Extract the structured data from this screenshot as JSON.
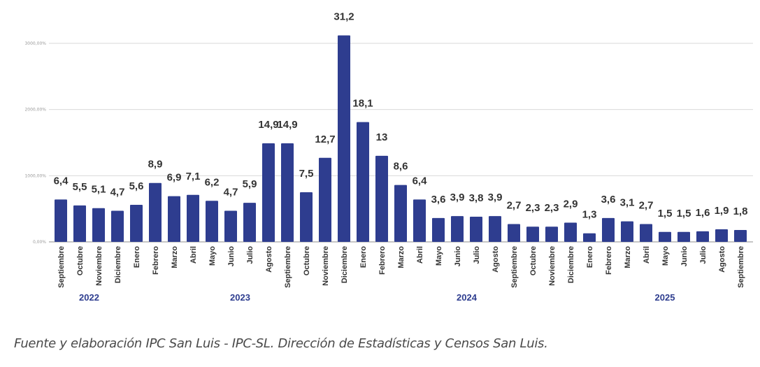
{
  "chart_data": {
    "type": "bar",
    "title": "",
    "xlabel": "",
    "ylabel": "",
    "ylim": [
      0,
      3000
    ],
    "y_ticks": [
      "0,00%",
      "1000,00%",
      "2000,00%",
      "3000,00%"
    ],
    "y_tick_values": [
      0,
      1000,
      2000,
      3000
    ],
    "grid": true,
    "legend": "none",
    "value_scale_note": "bars plotted as value x 100 on the percent axis",
    "categories": [
      "Septiembre",
      "Octubre",
      "Noviembre",
      "Diciembre",
      "Enero",
      "Febrero",
      "Marzo",
      "Abril",
      "Mayo",
      "Junio",
      "Julio",
      "Agosto",
      "Septiembre",
      "Octubre",
      "Noviembre",
      "Diciembre",
      "Enero",
      "Febrero",
      "Marzo",
      "Abril",
      "Mayo",
      "Junio",
      "Julio",
      "Agosto",
      "Septiembre",
      "Octubre",
      "Noviembre",
      "Diciembre",
      "Enero",
      "Febrero",
      "Marzo",
      "Abril",
      "Mayo",
      "Junio",
      "Julio",
      "Agosto",
      "Septiembre"
    ],
    "values": [
      6.4,
      5.5,
      5.1,
      4.7,
      5.6,
      8.9,
      6.9,
      7.1,
      6.2,
      4.7,
      5.9,
      14.9,
      14.9,
      7.5,
      12.7,
      31.2,
      18.1,
      13,
      8.6,
      6.4,
      3.6,
      3.9,
      3.8,
      3.9,
      2.7,
      2.3,
      2.3,
      2.9,
      1.3,
      3.6,
      3.1,
      2.7,
      1.5,
      1.5,
      1.6,
      1.9,
      1.8
    ],
    "data_labels": [
      "6,4",
      "5,5",
      "5,1",
      "4,7",
      "5,6",
      "8,9",
      "6,9",
      "7,1",
      "6,2",
      "4,7",
      "5,9",
      "14,9",
      "14,9",
      "7,5",
      "12,7",
      "31,2",
      "18,1",
      "13",
      "8,6",
      "6,4",
      "3,6",
      "3,9",
      "3,8",
      "3,9",
      "2,7",
      "2,3",
      "2,3",
      "2,9",
      "1,3",
      "3,6",
      "3,1",
      "2,7",
      "1,5",
      "1,5",
      "1,6",
      "1,9",
      "1,8"
    ],
    "year_groups": [
      {
        "label": "2022",
        "start": 0,
        "end": 3
      },
      {
        "label": "2023",
        "start": 4,
        "end": 15
      },
      {
        "label": "2024",
        "start": 16,
        "end": 27
      },
      {
        "label": "2025",
        "start": 28,
        "end": 36
      }
    ],
    "colors": {
      "bar": "#2e3d8f",
      "year_label": "#2e3d8f",
      "data_label": "#333333"
    }
  },
  "footer": {
    "source": "Fuente y elaboración IPC San Luis - IPC-SL. Dirección de Estadísticas y Censos San Luis."
  }
}
